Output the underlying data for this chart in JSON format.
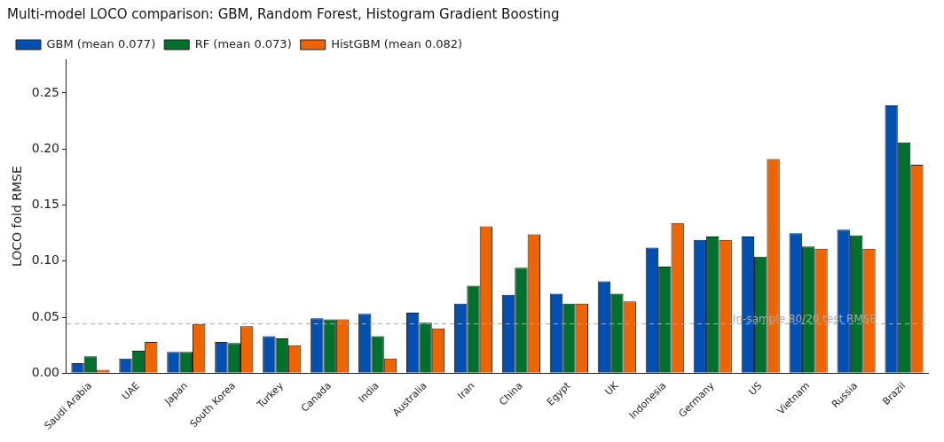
{
  "chart_data": {
    "type": "bar",
    "title": "Multi-model LOCO comparison: GBM, Random Forest, Histogram Gradient Boosting",
    "ylabel": "LOCO fold RMSE",
    "categories": [
      "Saudi Arabia",
      "UAE",
      "Japan",
      "South Korea",
      "Turkey",
      "Canada",
      "India",
      "Australia",
      "Iran",
      "China",
      "Egypt",
      "UK",
      "Indonesia",
      "Germany",
      "US",
      "Vietnam",
      "Russia",
      "Brazil"
    ],
    "series": [
      {
        "name": "GBM (mean 0.077)",
        "color": "#0050b4",
        "values": [
          0.009,
          0.013,
          0.019,
          0.028,
          0.033,
          0.049,
          0.053,
          0.054,
          0.062,
          0.07,
          0.071,
          0.082,
          0.112,
          0.119,
          0.122,
          0.125,
          0.128,
          0.239
        ]
      },
      {
        "name": "RF (mean 0.073)",
        "color": "#00702c",
        "values": [
          0.015,
          0.02,
          0.019,
          0.027,
          0.031,
          0.048,
          0.033,
          0.045,
          0.078,
          0.094,
          0.062,
          0.071,
          0.095,
          0.122,
          0.104,
          0.113,
          0.123,
          0.206
        ]
      },
      {
        "name": "HistGBM (mean 0.082)",
        "color": "#ee6400",
        "values": [
          0.003,
          0.028,
          0.044,
          0.042,
          0.025,
          0.048,
          0.013,
          0.04,
          0.131,
          0.124,
          0.062,
          0.064,
          0.134,
          0.119,
          0.191,
          0.111,
          0.111,
          0.186
        ]
      }
    ],
    "ylim": [
      0,
      0.28
    ],
    "yticks": [
      {
        "value": 0,
        "label": "0.00"
      },
      {
        "value": 0.05,
        "label": "0.05"
      },
      {
        "value": 0.1,
        "label": "0.10"
      },
      {
        "value": 0.15,
        "label": "0.15"
      },
      {
        "value": 0.2,
        "label": "0.20"
      },
      {
        "value": 0.25,
        "label": "0.25"
      }
    ],
    "ref_lines": [
      {
        "axis": "y",
        "value": 0.044,
        "label": "In-sample 80/20 test RMSE",
        "color": "#aaaaaa",
        "line_style": "dashed"
      }
    ],
    "grid": false,
    "legend": "top left"
  }
}
